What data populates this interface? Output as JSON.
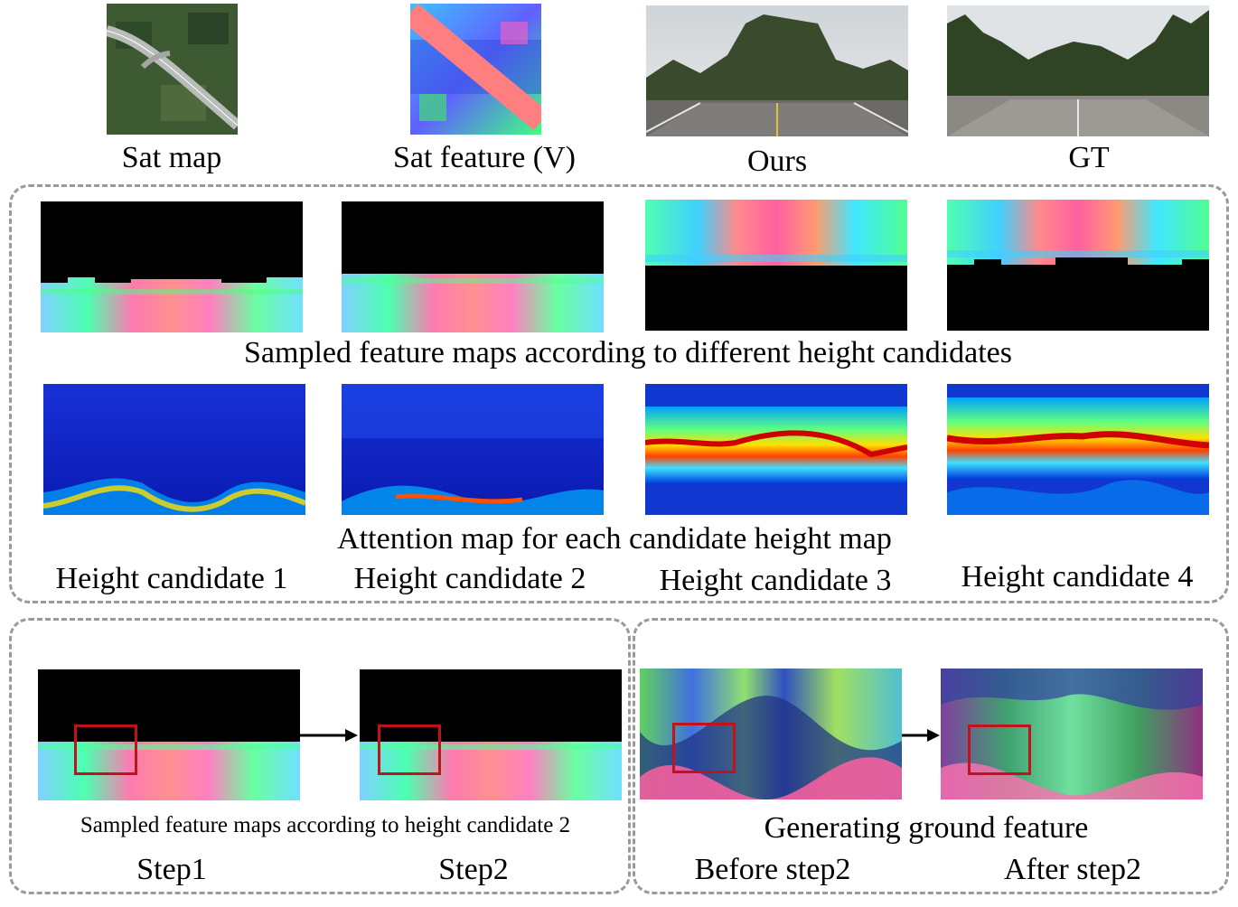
{
  "top_row": {
    "sat_map": "Sat map",
    "sat_feature": "Sat feature (V)",
    "ours": "Ours",
    "gt": "GT"
  },
  "height_panel": {
    "sampled_caption": "Sampled feature maps according to different height candidates",
    "attention_caption": "Attention map for each candidate height map",
    "candidates": [
      "Height candidate 1",
      "Height candidate 2",
      "Height candidate 3",
      "Height candidate 4"
    ]
  },
  "step_panel": {
    "caption": "Sampled feature maps according to height candidate 2",
    "step1": "Step1",
    "step2": "Step2"
  },
  "ground_panel": {
    "caption": "Generating ground feature",
    "before": "Before step2",
    "after": "After step2"
  },
  "colors": {
    "dash": "#9a9a9a",
    "highlight": "#c0141c"
  }
}
